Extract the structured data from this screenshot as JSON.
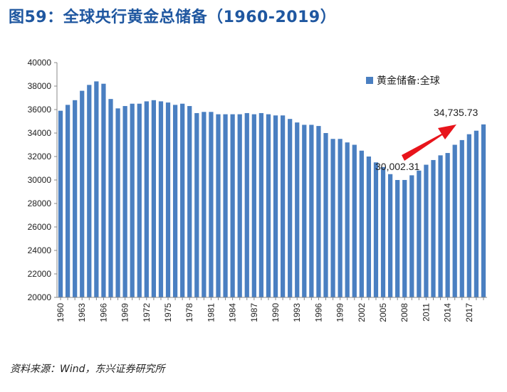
{
  "figure": {
    "title": "图59：全球央行黄金总储备（1960-2019）",
    "source": "资料来源：Wind，东兴证券研究所"
  },
  "colors": {
    "bar": "#4a7fc1",
    "title": "#1f57a0",
    "arrow": "#e8141b"
  },
  "chart_data": {
    "type": "bar",
    "title": "",
    "xlabel": "",
    "ylabel": "",
    "ylim": [
      20000,
      40000
    ],
    "yticks": [
      20000,
      22000,
      24000,
      26000,
      28000,
      30000,
      32000,
      34000,
      36000,
      38000,
      40000
    ],
    "xtick_labels": [
      "1960",
      "1963",
      "1966",
      "1969",
      "1972",
      "1975",
      "1978",
      "1981",
      "1984",
      "1987",
      "1990",
      "1993",
      "1996",
      "1999",
      "2002",
      "2005",
      "2008",
      "2011",
      "2014",
      "2017"
    ],
    "grid": false,
    "legend": {
      "position": "top-right",
      "entries": [
        "黄金储备:全球"
      ]
    },
    "categories": [
      "1960",
      "1961",
      "1962",
      "1963",
      "1964",
      "1965",
      "1966",
      "1967",
      "1968",
      "1969",
      "1970",
      "1971",
      "1972",
      "1973",
      "1974",
      "1975",
      "1976",
      "1977",
      "1978",
      "1979",
      "1980",
      "1981",
      "1982",
      "1983",
      "1984",
      "1985",
      "1986",
      "1987",
      "1988",
      "1989",
      "1990",
      "1991",
      "1992",
      "1993",
      "1994",
      "1995",
      "1996",
      "1997",
      "1998",
      "1999",
      "2000",
      "2001",
      "2002",
      "2003",
      "2004",
      "2005",
      "2006",
      "2007",
      "2008",
      "2009",
      "2010",
      "2011",
      "2012",
      "2013",
      "2014",
      "2015",
      "2016",
      "2017",
      "2018",
      "2019"
    ],
    "series": [
      {
        "name": "黄金储备:全球",
        "values": [
          35900,
          36400,
          36800,
          37600,
          38100,
          38400,
          38200,
          36900,
          36100,
          36300,
          36500,
          36500,
          36700,
          36800,
          36700,
          36600,
          36400,
          36500,
          36300,
          35700,
          35800,
          35800,
          35600,
          35600,
          35600,
          35600,
          35700,
          35600,
          35700,
          35600,
          35500,
          35500,
          35200,
          34900,
          34700,
          34700,
          34600,
          34000,
          33500,
          33500,
          33200,
          33000,
          32500,
          32000,
          31500,
          31100,
          30500,
          30000,
          30002.31,
          30400,
          30800,
          31300,
          31700,
          32100,
          32300,
          33000,
          33400,
          33900,
          34200,
          34735.73
        ]
      }
    ],
    "annotations": [
      {
        "label": "30,002.31",
        "x": "2008"
      },
      {
        "label": "34,735.73",
        "x": "2019"
      }
    ]
  }
}
